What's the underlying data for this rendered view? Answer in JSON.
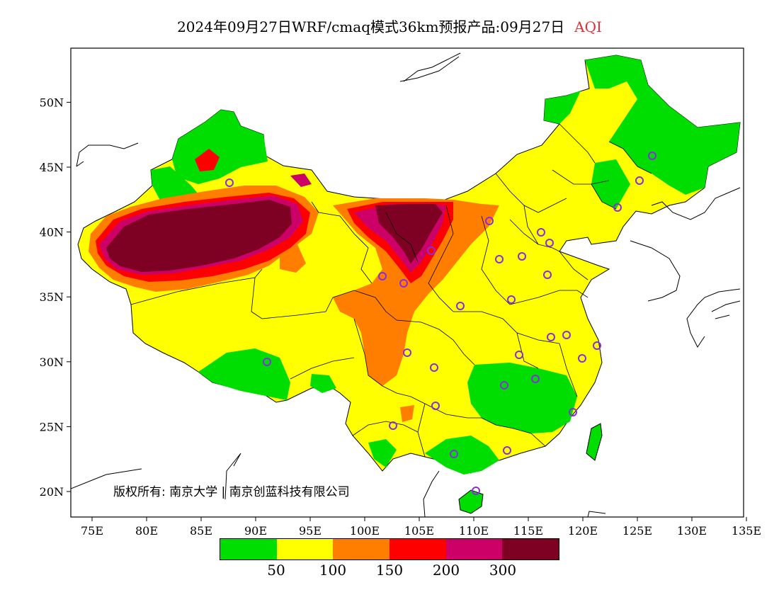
{
  "title": {
    "main": "2024年09月27日WRF/cmaq模式36km预报产品:09月27日",
    "variable": "AQI",
    "variable_color": "#e0303a"
  },
  "axes": {
    "lon_ticks": [
      "75E",
      "80E",
      "85E",
      "90E",
      "95E",
      "100E",
      "105E",
      "110E",
      "115E",
      "120E",
      "125E",
      "130E",
      "135E"
    ],
    "lat_ticks": [
      "20N",
      "25N",
      "30N",
      "35N",
      "40N",
      "45N",
      "50N"
    ]
  },
  "legend": {
    "colors": [
      "#00dd00",
      "#ffff00",
      "#ff7e00",
      "#ff0000",
      "#cc0066",
      "#7e0023"
    ],
    "labels": [
      "50",
      "100",
      "150",
      "200",
      "300"
    ]
  },
  "copyright": "版权所有: 南京大学 | 南京创蓝科技有限公司",
  "station_color": "#8a2be2"
}
